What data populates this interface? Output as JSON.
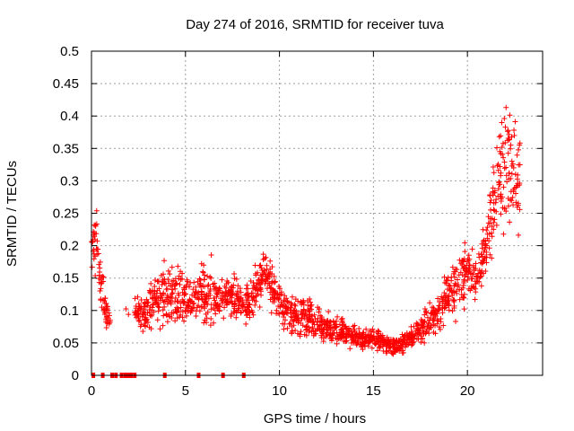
{
  "chart_data": {
    "type": "scatter",
    "title": "Day 274 of 2016, SRMTID for receiver tuva",
    "xlabel": "GPS time / hours",
    "ylabel": "SRMTID / TECUs",
    "xlim": [
      0,
      24
    ],
    "ylim": [
      0,
      0.5
    ],
    "xticks": [
      0,
      5,
      10,
      15,
      20
    ],
    "xtick_labels": [
      "0",
      "5",
      "10",
      "15",
      "20"
    ],
    "yticks": [
      0,
      0.05,
      0.1,
      0.15,
      0.2,
      0.25,
      0.3,
      0.35,
      0.4,
      0.45,
      0.5
    ],
    "ytick_labels": [
      "0",
      "0.05",
      "0.1",
      "0.15",
      "0.2",
      "0.25",
      "0.3",
      "0.35",
      "0.4",
      "0.45",
      "0.5"
    ],
    "grid": true,
    "marker": "+",
    "series_color": "#ff0000",
    "series": [
      {
        "name": "SRMTID",
        "profile": [
          [
            0.0,
            0.21,
            0.04
          ],
          [
            0.3,
            0.2,
            0.06
          ],
          [
            0.5,
            0.14,
            0.04
          ],
          [
            0.8,
            0.09,
            0.02
          ],
          [
            1.0,
            0.09,
            0.015
          ],
          [
            2.3,
            0.1,
            0.02
          ],
          [
            2.6,
            0.09,
            0.02
          ],
          [
            3.0,
            0.1,
            0.03
          ],
          [
            3.5,
            0.12,
            0.035
          ],
          [
            4.0,
            0.13,
            0.04
          ],
          [
            4.5,
            0.12,
            0.04
          ],
          [
            5.0,
            0.11,
            0.035
          ],
          [
            5.5,
            0.12,
            0.035
          ],
          [
            6.0,
            0.13,
            0.04
          ],
          [
            6.5,
            0.12,
            0.04
          ],
          [
            7.0,
            0.12,
            0.035
          ],
          [
            7.5,
            0.12,
            0.035
          ],
          [
            8.0,
            0.11,
            0.03
          ],
          [
            8.5,
            0.12,
            0.03
          ],
          [
            9.0,
            0.14,
            0.035
          ],
          [
            9.3,
            0.15,
            0.04
          ],
          [
            9.7,
            0.13,
            0.035
          ],
          [
            10.0,
            0.11,
            0.03
          ],
          [
            10.5,
            0.1,
            0.03
          ],
          [
            11.0,
            0.09,
            0.03
          ],
          [
            11.5,
            0.09,
            0.03
          ],
          [
            12.0,
            0.08,
            0.025
          ],
          [
            12.5,
            0.075,
            0.02
          ],
          [
            13.0,
            0.07,
            0.02
          ],
          [
            13.5,
            0.065,
            0.015
          ],
          [
            14.0,
            0.06,
            0.015
          ],
          [
            14.5,
            0.055,
            0.015
          ],
          [
            15.0,
            0.055,
            0.015
          ],
          [
            15.5,
            0.05,
            0.015
          ],
          [
            16.0,
            0.045,
            0.015
          ],
          [
            16.5,
            0.05,
            0.015
          ],
          [
            17.0,
            0.06,
            0.015
          ],
          [
            17.5,
            0.07,
            0.02
          ],
          [
            18.0,
            0.08,
            0.025
          ],
          [
            18.5,
            0.1,
            0.03
          ],
          [
            19.0,
            0.13,
            0.035
          ],
          [
            19.5,
            0.14,
            0.04
          ],
          [
            20.0,
            0.16,
            0.04
          ],
          [
            20.5,
            0.14,
            0.045
          ],
          [
            21.0,
            0.2,
            0.04
          ],
          [
            21.5,
            0.28,
            0.07
          ],
          [
            22.0,
            0.33,
            0.08
          ],
          [
            22.5,
            0.3,
            0.08
          ],
          [
            22.8,
            0.28,
            0.08
          ]
        ],
        "zero_points_x": [
          0.1,
          0.6,
          1.1,
          1.3,
          1.6,
          1.8,
          1.9,
          2.0,
          2.1,
          2.3,
          3.9,
          5.7,
          7.0,
          8.1
        ]
      }
    ]
  }
}
